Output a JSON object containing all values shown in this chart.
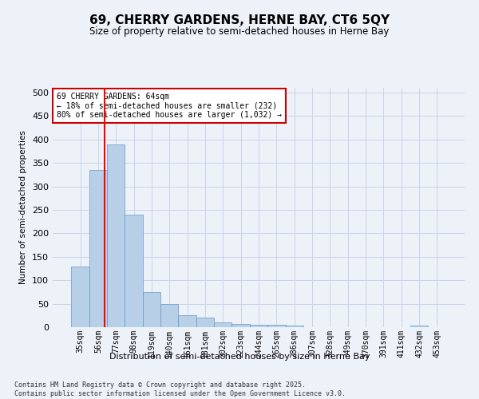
{
  "title": "69, CHERRY GARDENS, HERNE BAY, CT6 5QY",
  "subtitle": "Size of property relative to semi-detached houses in Herne Bay",
  "xlabel": "Distribution of semi-detached houses by size in Herne Bay",
  "ylabel": "Number of semi-detached properties",
  "categories": [
    "35sqm",
    "56sqm",
    "77sqm",
    "98sqm",
    "119sqm",
    "140sqm",
    "161sqm",
    "181sqm",
    "202sqm",
    "223sqm",
    "244sqm",
    "265sqm",
    "286sqm",
    "307sqm",
    "328sqm",
    "349sqm",
    "370sqm",
    "391sqm",
    "411sqm",
    "432sqm",
    "453sqm"
  ],
  "values": [
    130,
    335,
    390,
    240,
    75,
    50,
    25,
    20,
    10,
    7,
    5,
    5,
    3,
    0,
    0,
    0,
    0,
    0,
    0,
    3,
    0
  ],
  "bar_color": "#b8cfe8",
  "bar_edge_color": "#6698c8",
  "grid_color": "#c8d4e8",
  "background_color": "#edf2f9",
  "annotation_text": "69 CHERRY GARDENS: 64sqm\n← 18% of semi-detached houses are smaller (232)\n80% of semi-detached houses are larger (1,032) →",
  "annotation_box_color": "#ffffff",
  "annotation_box_edge": "#cc0000",
  "footer": "Contains HM Land Registry data © Crown copyright and database right 2025.\nContains public sector information licensed under the Open Government Licence v3.0.",
  "ylim": [
    0,
    510
  ],
  "yticks": [
    0,
    50,
    100,
    150,
    200,
    250,
    300,
    350,
    400,
    450,
    500
  ]
}
